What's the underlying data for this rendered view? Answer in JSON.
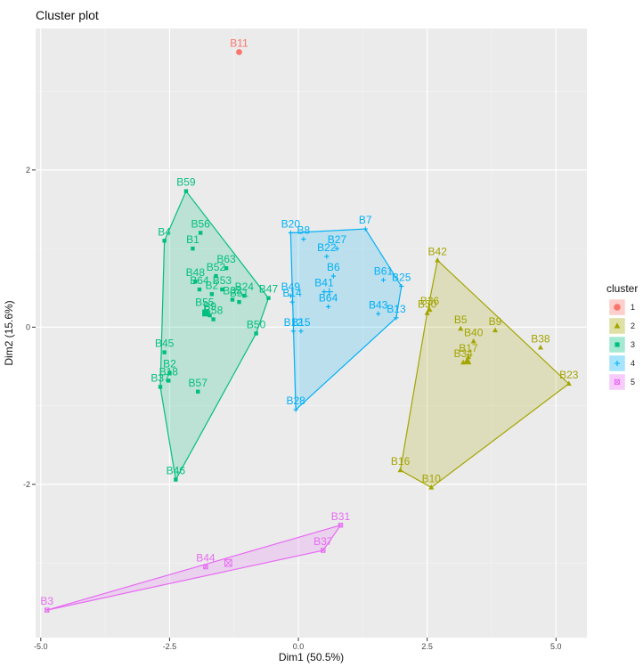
{
  "chart_data": {
    "type": "scatter",
    "title": "Cluster plot",
    "xlabel": "Dim1 (50.5%)",
    "ylabel": "Dim2 (15.6%)",
    "xlim": [
      -5.1,
      5.6
    ],
    "ylim": [
      -3.95,
      3.8
    ],
    "x_ticks": [
      -5.0,
      -2.5,
      0.0,
      2.5,
      5.0
    ],
    "x_tick_labels": [
      "-5.0",
      "-2.5",
      "0.0",
      "2.5",
      "5.0"
    ],
    "y_ticks": [
      -2,
      0,
      2
    ],
    "y_tick_labels": [
      "-2",
      "0",
      "2"
    ],
    "grid": true,
    "legend": {
      "title": "cluster",
      "position": "right"
    },
    "series": [
      {
        "name": "1",
        "color": "#F8766D",
        "shape": "circle",
        "points": [
          {
            "label": "B11",
            "x": -1.15,
            "y": 3.5
          }
        ],
        "hull": [
          "B11"
        ],
        "centroid": null
      },
      {
        "name": "2",
        "color": "#A3A500",
        "shape": "triangle",
        "points": [
          {
            "label": "B42",
            "x": 2.7,
            "y": 0.85
          },
          {
            "label": "B23",
            "x": 5.25,
            "y": -0.72
          },
          {
            "label": "B38",
            "x": 4.7,
            "y": -0.26
          },
          {
            "label": "B10",
            "x": 2.58,
            "y": -2.04
          },
          {
            "label": "B16",
            "x": 1.98,
            "y": -1.82
          },
          {
            "label": "B30",
            "x": 2.5,
            "y": 0.18
          },
          {
            "label": "B36",
            "x": 2.55,
            "y": 0.22
          },
          {
            "label": "B5",
            "x": 3.15,
            "y": -0.02
          },
          {
            "label": "B9",
            "x": 3.82,
            "y": -0.04
          },
          {
            "label": "B40",
            "x": 3.4,
            "y": -0.18
          },
          {
            "label": "B17",
            "x": 3.3,
            "y": -0.38
          },
          {
            "label": "B34",
            "x": 3.2,
            "y": -0.45
          }
        ],
        "hull": [
          "B42",
          "B23",
          "B10",
          "B16",
          "B30"
        ],
        "centroid": {
          "x": 3.28,
          "y": -0.43
        }
      },
      {
        "name": "3",
        "color": "#00BF7D",
        "shape": "square",
        "points": [
          {
            "label": "B59",
            "x": -2.18,
            "y": 1.73
          },
          {
            "label": "B4",
            "x": -2.6,
            "y": 1.1
          },
          {
            "label": "B56",
            "x": -1.9,
            "y": 1.2
          },
          {
            "label": "B1",
            "x": -2.05,
            "y": 1.0
          },
          {
            "label": "B63",
            "x": -1.4,
            "y": 0.75
          },
          {
            "label": "B52",
            "x": -1.6,
            "y": 0.65
          },
          {
            "label": "B48",
            "x": -2.0,
            "y": 0.58
          },
          {
            "label": "B53",
            "x": -1.48,
            "y": 0.48
          },
          {
            "label": "B64",
            "x": -1.92,
            "y": 0.48
          },
          {
            "label": "B2",
            "x": -1.68,
            "y": 0.42
          },
          {
            "label": "B24",
            "x": -1.05,
            "y": 0.4
          },
          {
            "label": "B47",
            "x": -0.58,
            "y": 0.37
          },
          {
            "label": "B33",
            "x": -1.28,
            "y": 0.35
          },
          {
            "label": "B51",
            "x": -1.15,
            "y": 0.32
          },
          {
            "label": "B55",
            "x": -1.82,
            "y": 0.2
          },
          {
            "label": "B9x",
            "x": -1.72,
            "y": 0.15
          },
          {
            "label": "B58",
            "x": -1.65,
            "y": 0.1
          },
          {
            "label": "B50",
            "x": -0.82,
            "y": -0.08
          },
          {
            "label": "B45",
            "x": -2.6,
            "y": -0.32
          },
          {
            "label": "B2b",
            "x": -2.5,
            "y": -0.58
          },
          {
            "label": "B18",
            "x": -2.52,
            "y": -0.68
          },
          {
            "label": "B37x",
            "x": -2.68,
            "y": -0.76
          },
          {
            "label": "B57",
            "x": -1.95,
            "y": -0.82
          },
          {
            "label": "B46",
            "x": -2.38,
            "y": -1.94
          }
        ],
        "hull": [
          "B59",
          "B47",
          "B50",
          "B46",
          "B37x",
          "B4"
        ],
        "centroid": {
          "x": -1.8,
          "y": 0.18
        }
      },
      {
        "name": "4",
        "color": "#00B0F6",
        "shape": "plus",
        "points": [
          {
            "label": "B7",
            "x": 1.3,
            "y": 1.25
          },
          {
            "label": "B20",
            "x": -0.15,
            "y": 1.2
          },
          {
            "label": "B8",
            "x": 0.1,
            "y": 1.12
          },
          {
            "label": "B27",
            "x": 0.75,
            "y": 1.0
          },
          {
            "label": "B22",
            "x": 0.55,
            "y": 0.9
          },
          {
            "label": "B6",
            "x": 0.68,
            "y": 0.65
          },
          {
            "label": "B61",
            "x": 1.65,
            "y": 0.6
          },
          {
            "label": "B25",
            "x": 2.0,
            "y": 0.52
          },
          {
            "label": "B41",
            "x": 0.5,
            "y": 0.45
          },
          {
            "label": "B49",
            "x": -0.15,
            "y": 0.4
          },
          {
            "label": "B64x",
            "x": 0.58,
            "y": 0.26
          },
          {
            "label": "B14",
            "x": -0.12,
            "y": 0.32
          },
          {
            "label": "B43",
            "x": 1.55,
            "y": 0.17
          },
          {
            "label": "B13",
            "x": 1.9,
            "y": 0.12
          },
          {
            "label": "B12",
            "x": -0.1,
            "y": -0.05
          },
          {
            "label": "B15",
            "x": 0.05,
            "y": -0.05
          },
          {
            "label": "B28",
            "x": -0.05,
            "y": -1.05
          }
        ],
        "hull": [
          "B7",
          "B25",
          "B13",
          "B28",
          "B20"
        ],
        "centroid": {
          "x": 0.6,
          "y": 0.45
        }
      },
      {
        "name": "5",
        "color": "#E76BF3",
        "shape": "square-cross",
        "points": [
          {
            "label": "B31",
            "x": 0.82,
            "y": -2.52
          },
          {
            "label": "B37",
            "x": 0.48,
            "y": -2.84
          },
          {
            "label": "B44",
            "x": -1.8,
            "y": -3.05
          },
          {
            "label": "B3",
            "x": -4.88,
            "y": -3.6
          }
        ],
        "hull": [
          "B31",
          "B37",
          "B3"
        ],
        "centroid": {
          "x": -1.36,
          "y": -3.0
        }
      }
    ],
    "visible_labels": {
      "B9x": "B9",
      "B2b": "B2",
      "B37x": "B37",
      "B64x": "B64"
    }
  }
}
